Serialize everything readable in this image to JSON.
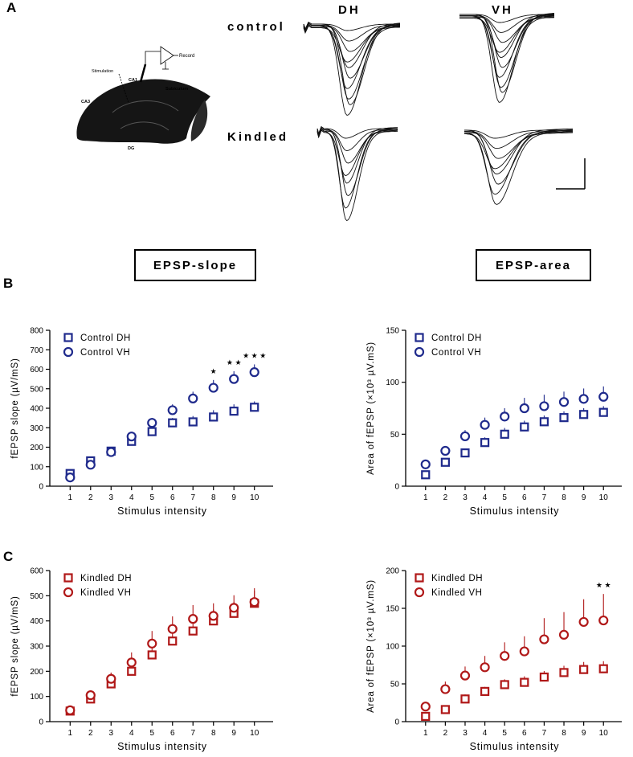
{
  "panels": {
    "a": "A",
    "b": "B",
    "c": "C"
  },
  "panel_a": {
    "col_dh": "DH",
    "col_vh": "VH",
    "row_control": "control",
    "row_kindled": "Kindled",
    "schematic": {
      "record": "Record",
      "stimulation": "Stimulation",
      "ca1": "CA1",
      "ca3": "CA3",
      "subiculum": "Subiculum",
      "dg": "DG"
    }
  },
  "box_labels": {
    "slope": "EPSP-slope",
    "area": "EPSP-area"
  },
  "chart_data": [
    {
      "id": "b-slope",
      "type": "scatter",
      "xlabel": "Stimulus intensity",
      "ylabel": "fEPSP slope (µV/mS)",
      "x": [
        1,
        2,
        3,
        4,
        5,
        6,
        7,
        8,
        9,
        10
      ],
      "ylim": [
        0,
        800
      ],
      "yticks": [
        0,
        100,
        200,
        300,
        400,
        500,
        600,
        700,
        800
      ],
      "color": "#1f2a8c",
      "series": [
        {
          "name": "Control DH",
          "marker": "square",
          "values": [
            65,
            130,
            180,
            230,
            280,
            325,
            330,
            355,
            385,
            405
          ],
          "errors": [
            8,
            10,
            12,
            15,
            20,
            25,
            30,
            35,
            35,
            30
          ]
        },
        {
          "name": "Control VH",
          "marker": "circle",
          "values": [
            45,
            110,
            175,
            255,
            325,
            390,
            450,
            505,
            550,
            585
          ],
          "errors": [
            8,
            10,
            15,
            20,
            25,
            30,
            35,
            40,
            40,
            40
          ]
        }
      ],
      "annotations": [
        {
          "x": 8,
          "text": "★"
        },
        {
          "x": 9,
          "text": "★ ★"
        },
        {
          "x": 10,
          "text": "★ ★ ★"
        }
      ]
    },
    {
      "id": "b-area",
      "type": "scatter",
      "xlabel": "Stimulus intensity",
      "ylabel": "Area of fEPSP (×10³ µV.mS)",
      "x": [
        1,
        2,
        3,
        4,
        5,
        6,
        7,
        8,
        9,
        10
      ],
      "ylim": [
        0,
        150
      ],
      "yticks": [
        0,
        50,
        100,
        150
      ],
      "color": "#1f2a8c",
      "series": [
        {
          "name": "Control DH",
          "marker": "square",
          "values": [
            11,
            23,
            32,
            42,
            50,
            57,
            62,
            66,
            69,
            71
          ],
          "errors": [
            2,
            3,
            4,
            5,
            6,
            6,
            6,
            6,
            6,
            6
          ]
        },
        {
          "name": "Control VH",
          "marker": "circle",
          "values": [
            21,
            34,
            48,
            59,
            67,
            75,
            77,
            81,
            84,
            86
          ],
          "errors": [
            3,
            4,
            6,
            7,
            8,
            10,
            11,
            10,
            10,
            10
          ]
        }
      ],
      "annotations": []
    },
    {
      "id": "c-slope",
      "type": "scatter",
      "xlabel": "Stimulus intensity",
      "ylabel": "fEPSP slope (µV/mS)",
      "x": [
        1,
        2,
        3,
        4,
        5,
        6,
        7,
        8,
        9,
        10
      ],
      "ylim": [
        0,
        600
      ],
      "yticks": [
        0,
        100,
        200,
        300,
        400,
        500,
        600
      ],
      "color": "#b01818",
      "series": [
        {
          "name": "Kindled DH",
          "marker": "square",
          "values": [
            42,
            90,
            150,
            200,
            265,
            320,
            360,
            400,
            430,
            470
          ],
          "errors": [
            8,
            15,
            20,
            30,
            40,
            35,
            40,
            45,
            45,
            50
          ]
        },
        {
          "name": "Kindled VH",
          "marker": "circle",
          "values": [
            45,
            105,
            170,
            235,
            310,
            368,
            408,
            420,
            452,
            475
          ],
          "errors": [
            8,
            15,
            25,
            40,
            50,
            50,
            55,
            50,
            50,
            55
          ]
        }
      ],
      "annotations": []
    },
    {
      "id": "c-area",
      "type": "scatter",
      "xlabel": "Stimulus intensity",
      "ylabel": "Area of fEPSP (×10³ µV.mS)",
      "x": [
        1,
        2,
        3,
        4,
        5,
        6,
        7,
        8,
        9,
        10
      ],
      "ylim": [
        0,
        200
      ],
      "yticks": [
        0,
        50,
        100,
        150,
        200
      ],
      "color": "#b01818",
      "series": [
        {
          "name": "Kindled DH",
          "marker": "square",
          "values": [
            7,
            16,
            30,
            40,
            49,
            52,
            59,
            65,
            69,
            70
          ],
          "errors": [
            3,
            4,
            6,
            6,
            7,
            8,
            8,
            9,
            10,
            10
          ]
        },
        {
          "name": "Kindled VH",
          "marker": "circle",
          "values": [
            20,
            43,
            61,
            72,
            87,
            93,
            109,
            115,
            132,
            134
          ],
          "errors": [
            4,
            10,
            12,
            15,
            18,
            20,
            28,
            30,
            30,
            35
          ]
        }
      ],
      "annotations": [
        {
          "x": 10,
          "text": "★ ★"
        }
      ]
    }
  ]
}
